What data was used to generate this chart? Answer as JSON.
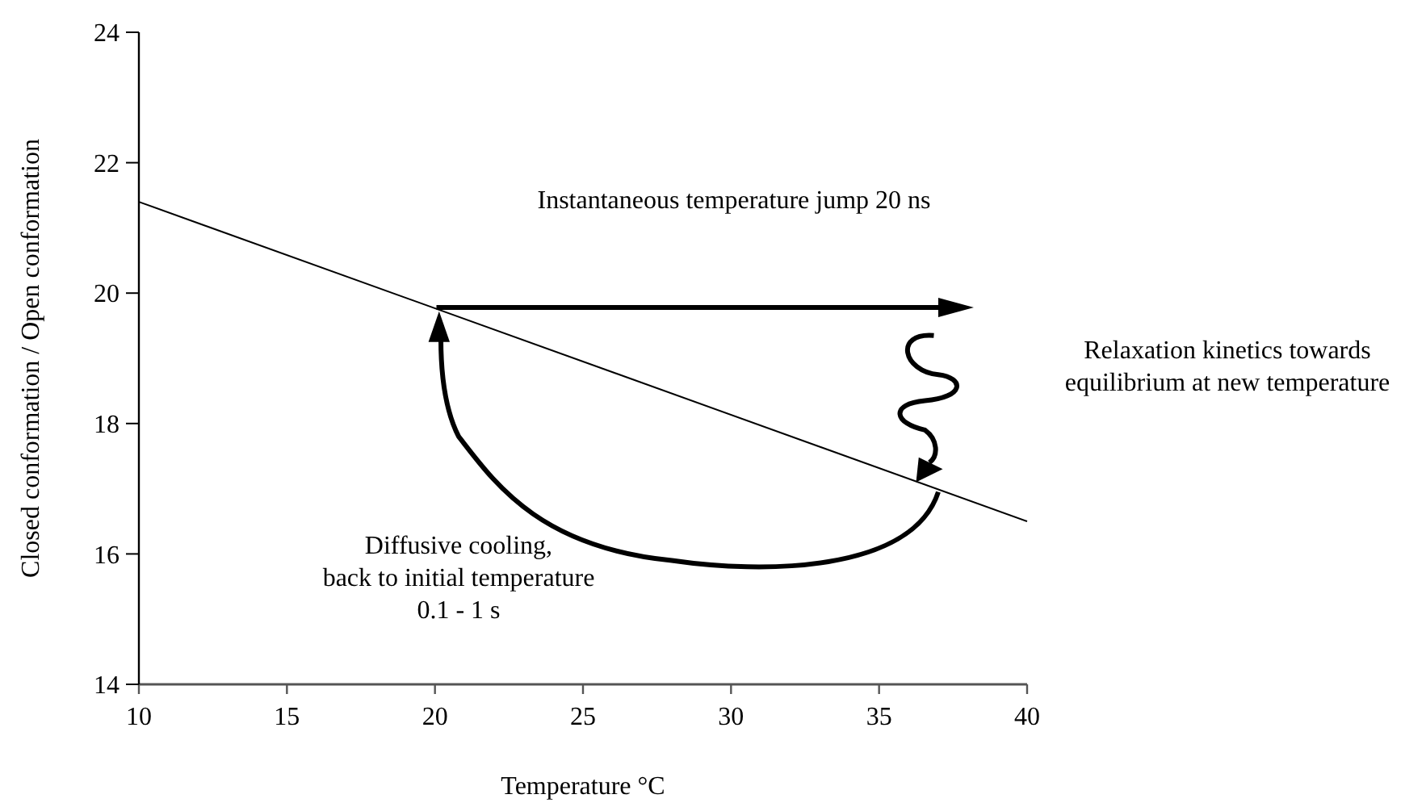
{
  "chart_data": {
    "type": "line",
    "x": [
      10,
      40
    ],
    "series": [
      {
        "color": "#000000",
        "values": [
          21.4,
          16.5
        ]
      }
    ],
    "xlabel": "Temperature °C",
    "ylabel": "Closed conformation / Open conformation",
    "xlim": [
      10,
      40
    ],
    "xticks": [
      10,
      15,
      20,
      25,
      30,
      35,
      40
    ],
    "ylim": [
      14,
      24
    ],
    "yticks": [
      14,
      16,
      18,
      20,
      22,
      24
    ],
    "grid": false,
    "marker": "none",
    "line_style": "solid",
    "annotations": [
      "Instantaneous temperature jump 20 ns",
      "Relaxation kinetics towards\nequilibrium at new temperature",
      "Diffusive cooling,\nback to initial temperature\n0.1 - 1 s"
    ]
  }
}
